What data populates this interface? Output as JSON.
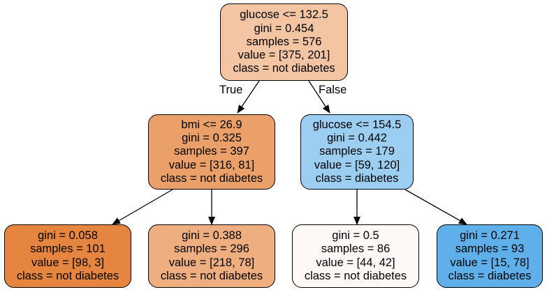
{
  "tree": {
    "nodes": [
      {
        "id": "n0",
        "lines": [
          "glucose <= 132.5",
          "gini = 0.454",
          "samples = 576",
          "value = [375, 201]",
          "class = not diabetes"
        ],
        "fill": "#f4c5a2"
      },
      {
        "id": "n1",
        "lines": [
          "bmi <= 26.9",
          "gini = 0.325",
          "samples = 397",
          "value = [316, 81]",
          "class = not diabetes"
        ],
        "fill": "#eba06a"
      },
      {
        "id": "n2",
        "lines": [
          "glucose <= 154.5",
          "gini = 0.442",
          "samples = 179",
          "value = [59, 120]",
          "class = diabetes"
        ],
        "fill": "#9ccef2"
      },
      {
        "id": "n3",
        "lines": [
          "gini = 0.058",
          "samples = 101",
          "value = [98, 3]",
          "class = not diabetes"
        ],
        "fill": "#e6853f"
      },
      {
        "id": "n4",
        "lines": [
          "gini = 0.388",
          "samples = 296",
          "value = [218, 78]",
          "class = not diabetes"
        ],
        "fill": "#eeae80"
      },
      {
        "id": "n5",
        "lines": [
          "gini = 0.5",
          "samples = 86",
          "value = [44, 42]",
          "class = not diabetes"
        ],
        "fill": "#fef9f6"
      },
      {
        "id": "n6",
        "lines": [
          "gini = 0.271",
          "samples = 93",
          "value = [15, 78]",
          "class = diabetes"
        ],
        "fill": "#5fb0ea"
      }
    ],
    "edges": [
      {
        "from": "n0",
        "to": "n1",
        "label": "True"
      },
      {
        "from": "n0",
        "to": "n2",
        "label": "False"
      },
      {
        "from": "n1",
        "to": "n3",
        "label": ""
      },
      {
        "from": "n1",
        "to": "n4",
        "label": ""
      },
      {
        "from": "n2",
        "to": "n5",
        "label": ""
      },
      {
        "from": "n2",
        "to": "n6",
        "label": ""
      }
    ]
  }
}
